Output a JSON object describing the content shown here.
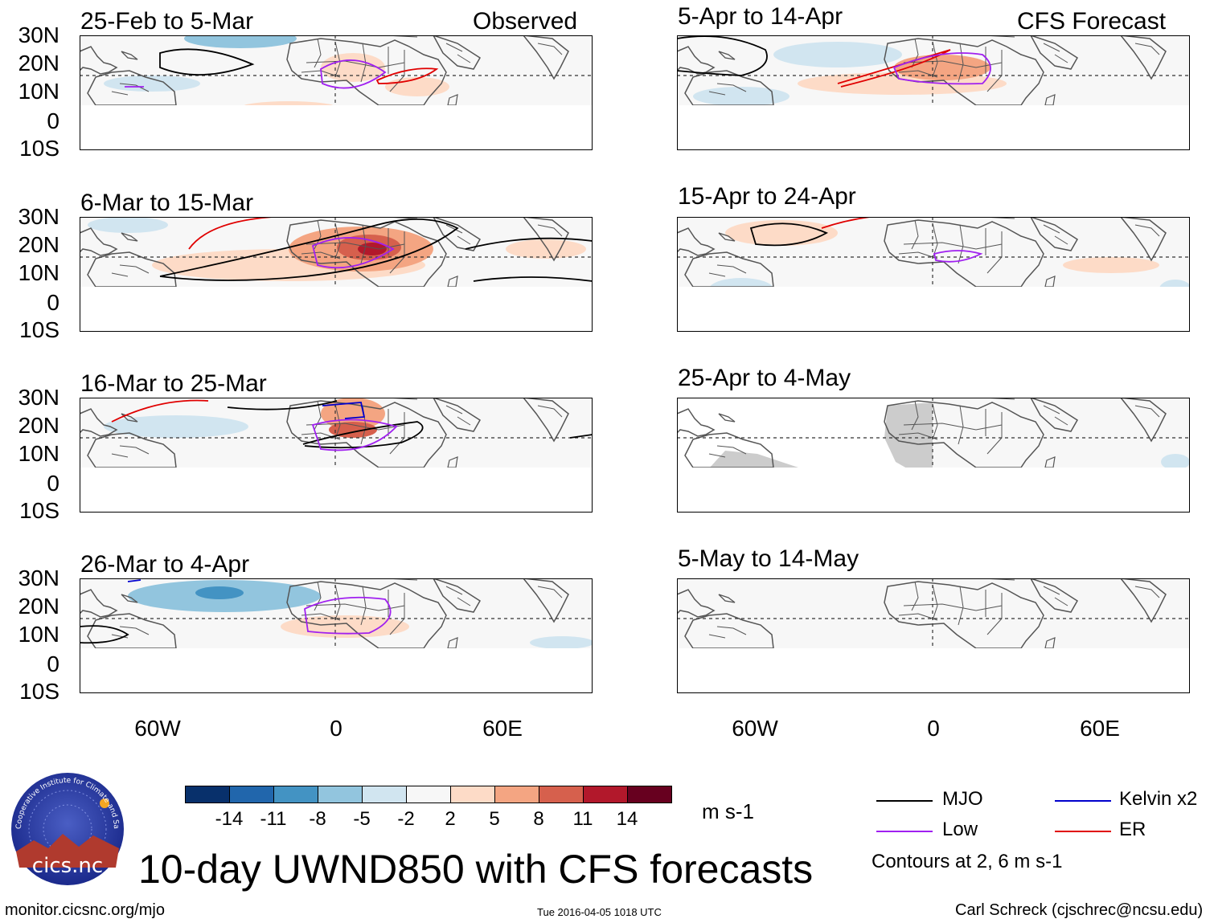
{
  "figure_title": "10-day UWND850 with CFS forecasts",
  "headers": {
    "observed": "Observed",
    "forecast": "CFS Forecast"
  },
  "lat_labels": [
    "30N",
    "20N",
    "10N",
    "0",
    "10S"
  ],
  "lon_labels": [
    "60W",
    "0",
    "60E"
  ],
  "observed_panels": [
    {
      "title": "25-Feb to 5-Mar"
    },
    {
      "title": "6-Mar to 15-Mar"
    },
    {
      "title": "16-Mar to 25-Mar"
    },
    {
      "title": "26-Mar to 4-Apr"
    }
  ],
  "forecast_panels": [
    {
      "title": "5-Apr to 14-Apr"
    },
    {
      "title": "15-Apr to 24-Apr"
    },
    {
      "title": "25-Apr to 4-May"
    },
    {
      "title": "5-May to 14-May"
    }
  ],
  "colorbar": {
    "units": "m s-1",
    "tick_labels": [
      "-14",
      "-11",
      "-8",
      "-5",
      "-2",
      "2",
      "5",
      "8",
      "11",
      "14"
    ],
    "colors": [
      "#08306b",
      "#2166ac",
      "#4393c3",
      "#92c5de",
      "#d1e5f0",
      "#f7f7f7",
      "#fddbc7",
      "#f4a582",
      "#d6604d",
      "#b2182b",
      "#67001f"
    ]
  },
  "legend": {
    "items": [
      {
        "label": "MJO",
        "color": "#000000"
      },
      {
        "label": "Kelvin x2",
        "color": "#0000cc"
      },
      {
        "label": "Low",
        "color": "#a020f0"
      },
      {
        "label": "ER",
        "color": "#e00000"
      }
    ],
    "note": "Contours at 2, 6 m s-1"
  },
  "logo_text": "cics.nc",
  "logo_ring_text": "Cooperative Institute for Climate and Satellites",
  "footer": {
    "url": "monitor.cicsnc.org/mjo",
    "timestamp": "Tue 2016-04-05 1018 UTC",
    "author": "Carl Schreck (cjschrec@ncsu.edu)"
  }
}
